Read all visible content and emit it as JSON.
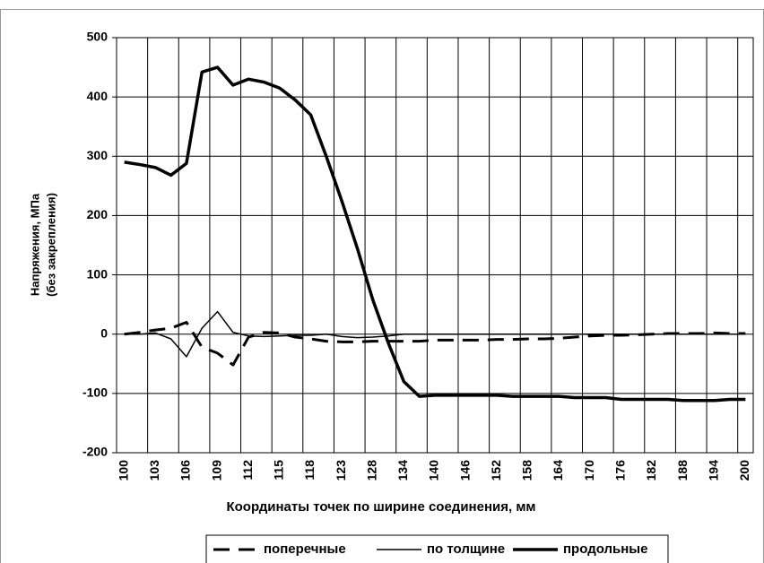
{
  "chart_data": {
    "type": "line",
    "xlabel": "Координаты точек по ширине соединения, мм",
    "ylabel": [
      "Напряжения, МПа",
      "(без закрепления)"
    ],
    "categories": [
      "100",
      null,
      "103",
      null,
      "106",
      null,
      "109",
      null,
      "112",
      null,
      "115",
      null,
      "118",
      null,
      "123",
      null,
      "128",
      null,
      "134",
      null,
      "140",
      null,
      "146",
      null,
      "152",
      null,
      "158",
      null,
      "164",
      null,
      "170",
      null,
      "176",
      null,
      "182",
      null,
      "188",
      null,
      "194",
      null,
      "200"
    ],
    "ylim": [
      -200,
      500
    ],
    "yticks": [
      -200,
      -100,
      0,
      100,
      200,
      300,
      400,
      500
    ],
    "grid": true,
    "legend": "bottom",
    "series": [
      {
        "name": "поперечные",
        "color": "#000000",
        "dash": true,
        "width": 3,
        "values": [
          0,
          3,
          7,
          10,
          20,
          -22,
          -32,
          -52,
          -5,
          3,
          2,
          -5,
          -8,
          -12,
          -13,
          -13,
          -12,
          -12,
          -12,
          -12,
          -10,
          -10,
          -10,
          -10,
          -9,
          -9,
          -8,
          -8,
          -7,
          -5,
          -3,
          -2,
          -2,
          -1,
          0,
          1,
          1,
          1,
          2,
          1,
          1
        ]
      },
      {
        "name": "по толщине",
        "color": "#000000",
        "dash": false,
        "width": 1.5,
        "values": [
          0,
          0,
          2,
          -8,
          -38,
          10,
          38,
          3,
          -3,
          -4,
          -3,
          -2,
          -2,
          0,
          -4,
          -6,
          -5,
          -3,
          0,
          0,
          0,
          0,
          0,
          0,
          0,
          0,
          0,
          0,
          0,
          0,
          0,
          0,
          0,
          0,
          0,
          0,
          0,
          0,
          0,
          0,
          0
        ]
      },
      {
        "name": "продольные",
        "color": "#000000",
        "dash": false,
        "width": 3.5,
        "values": [
          290,
          286,
          281,
          268,
          288,
          442,
          450,
          420,
          430,
          425,
          415,
          395,
          370,
          300,
          225,
          145,
          58,
          -15,
          -80,
          -105,
          -103,
          -103,
          -103,
          -103,
          -103,
          -105,
          -105,
          -105,
          -105,
          -107,
          -107,
          -107,
          -110,
          -110,
          -110,
          -110,
          -112,
          -112,
          -112,
          -110,
          -110
        ]
      }
    ]
  }
}
